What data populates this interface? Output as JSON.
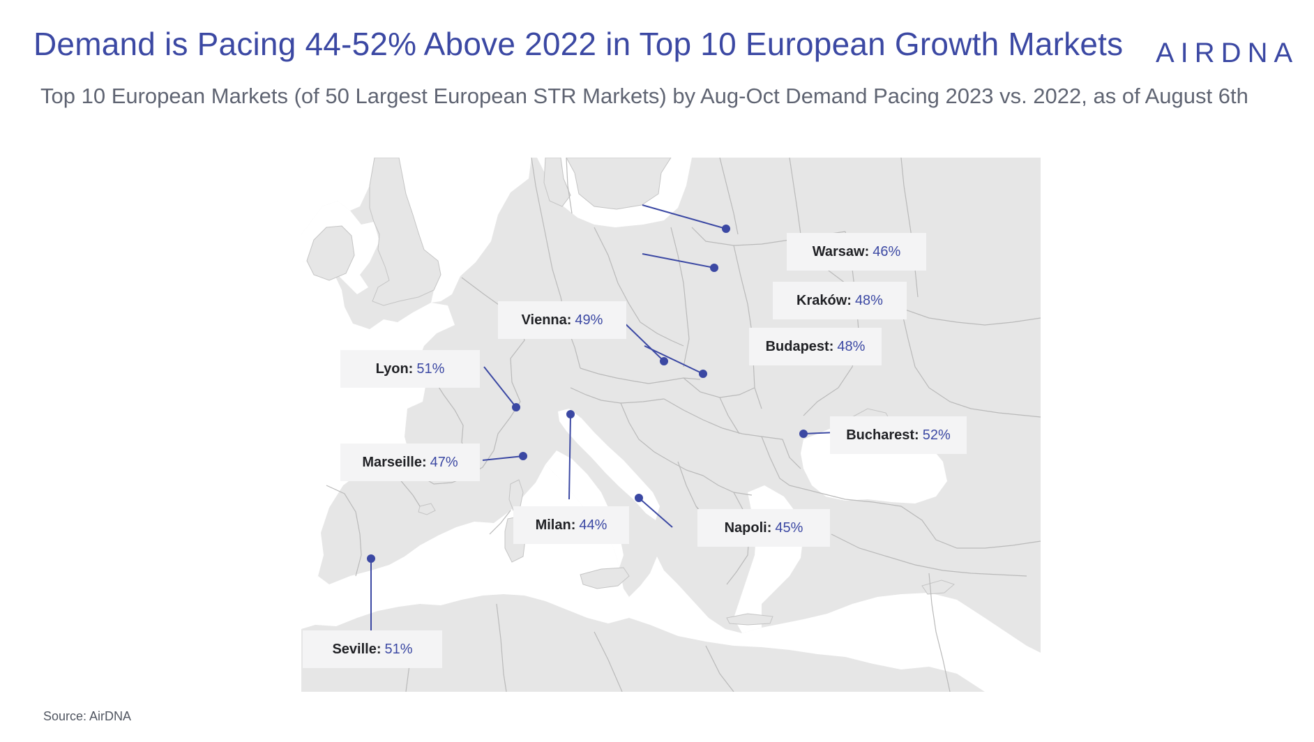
{
  "header": {
    "title": "Demand is Pacing 44-52% Above 2022 in Top 10 European Growth Markets",
    "subtitle": "Top 10 European Markets (of 50 Largest European STR Markets) by Aug-Oct Demand Pacing 2023 vs. 2022, as of August 6th",
    "logo": "AIRDNA"
  },
  "footer": {
    "source": "Source: AirDNA"
  },
  "colors": {
    "accent": "#3b48a3",
    "land": "#e6e6e6",
    "sea": "#ffffff",
    "border": "#b9b9b9",
    "label_bg": "#f4f4f5"
  },
  "map": {
    "region": "Europe",
    "markers": [
      {
        "city": "Warsaw:",
        "value": "46%"
      },
      {
        "city": "Kraków:",
        "value": "48%"
      },
      {
        "city": "Vienna:",
        "value": "49%"
      },
      {
        "city": "Budapest:",
        "value": "48%"
      },
      {
        "city": "Lyon:",
        "value": "51%"
      },
      {
        "city": "Bucharest:",
        "value": "52%"
      },
      {
        "city": "Marseille:",
        "value": "47%"
      },
      {
        "city": "Milan:",
        "value": "44%"
      },
      {
        "city": "Napoli:",
        "value": "45%"
      },
      {
        "city": "Seville:",
        "value": "51%"
      }
    ]
  }
}
